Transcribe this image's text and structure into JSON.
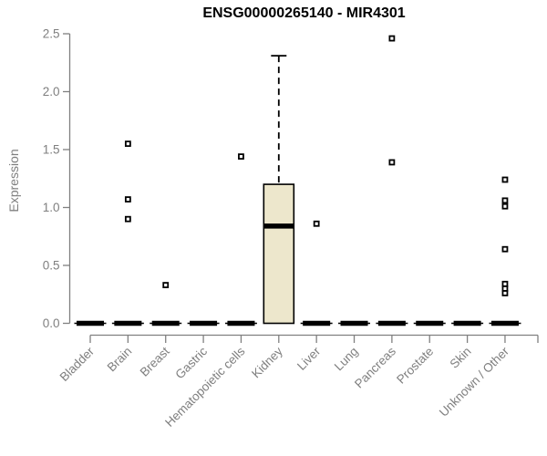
{
  "chart_data": {
    "type": "boxplot",
    "title": "ENSG00000265140 - MIR4301",
    "xlabel": "",
    "ylabel": "Expression",
    "ylim": [
      0,
      2.5
    ],
    "y_ticks": [
      0,
      0.5,
      1,
      1.5,
      2,
      2.5
    ],
    "grid": false,
    "legend": "none",
    "categories": [
      "Bladder",
      "Brain",
      "Breast",
      "Gastric",
      "Hematopoietic cells",
      "Kidney",
      "Liver",
      "Lung",
      "Pancreas",
      "Prostate",
      "Skin",
      "Unknown / Other"
    ],
    "series": [
      {
        "category": "Bladder",
        "q1": 0,
        "median": 0,
        "q3": 0,
        "whisker_low": 0,
        "whisker_high": 0,
        "outliers": []
      },
      {
        "category": "Brain",
        "q1": 0,
        "median": 0,
        "q3": 0,
        "whisker_low": 0,
        "whisker_high": 0,
        "outliers": [
          1.55,
          1.07,
          0.9
        ]
      },
      {
        "category": "Breast",
        "q1": 0,
        "median": 0,
        "q3": 0,
        "whisker_low": 0,
        "whisker_high": 0,
        "outliers": [
          0.33
        ]
      },
      {
        "category": "Gastric",
        "q1": 0,
        "median": 0,
        "q3": 0,
        "whisker_low": 0,
        "whisker_high": 0,
        "outliers": []
      },
      {
        "category": "Hematopoietic cells",
        "q1": 0,
        "median": 0,
        "q3": 0,
        "whisker_low": 0,
        "whisker_high": 0,
        "outliers": [
          1.44
        ]
      },
      {
        "category": "Kidney",
        "q1": 0,
        "median": 0.84,
        "q3": 1.2,
        "whisker_low": 0,
        "whisker_high": 2.31,
        "outliers": []
      },
      {
        "category": "Liver",
        "q1": 0,
        "median": 0,
        "q3": 0,
        "whisker_low": 0,
        "whisker_high": 0,
        "outliers": [
          0.86
        ]
      },
      {
        "category": "Lung",
        "q1": 0,
        "median": 0,
        "q3": 0,
        "whisker_low": 0,
        "whisker_high": 0,
        "outliers": []
      },
      {
        "category": "Pancreas",
        "q1": 0,
        "median": 0,
        "q3": 0,
        "whisker_low": 0,
        "whisker_high": 0,
        "outliers": [
          2.46,
          1.39
        ]
      },
      {
        "category": "Prostate",
        "q1": 0,
        "median": 0,
        "q3": 0,
        "whisker_low": 0,
        "whisker_high": 0,
        "outliers": []
      },
      {
        "category": "Skin",
        "q1": 0,
        "median": 0,
        "q3": 0,
        "whisker_low": 0,
        "whisker_high": 0,
        "outliers": []
      },
      {
        "category": "Unknown / Other",
        "q1": 0,
        "median": 0,
        "q3": 0,
        "whisker_low": 0,
        "whisker_high": 0,
        "outliers": [
          1.24,
          1.06,
          1.01,
          0.64,
          0.34,
          0.3,
          0.26
        ]
      }
    ],
    "colors": {
      "box_fill": "#EDE7CC",
      "box_stroke": "#000000",
      "median": "#000000",
      "whisker": "#000000",
      "outlier_fill": "#ffffff",
      "outlier_stroke": "#000000",
      "axis": "#808080",
      "tick_text": "#7f7f7f",
      "title": "#000000",
      "background": "#ffffff"
    }
  }
}
